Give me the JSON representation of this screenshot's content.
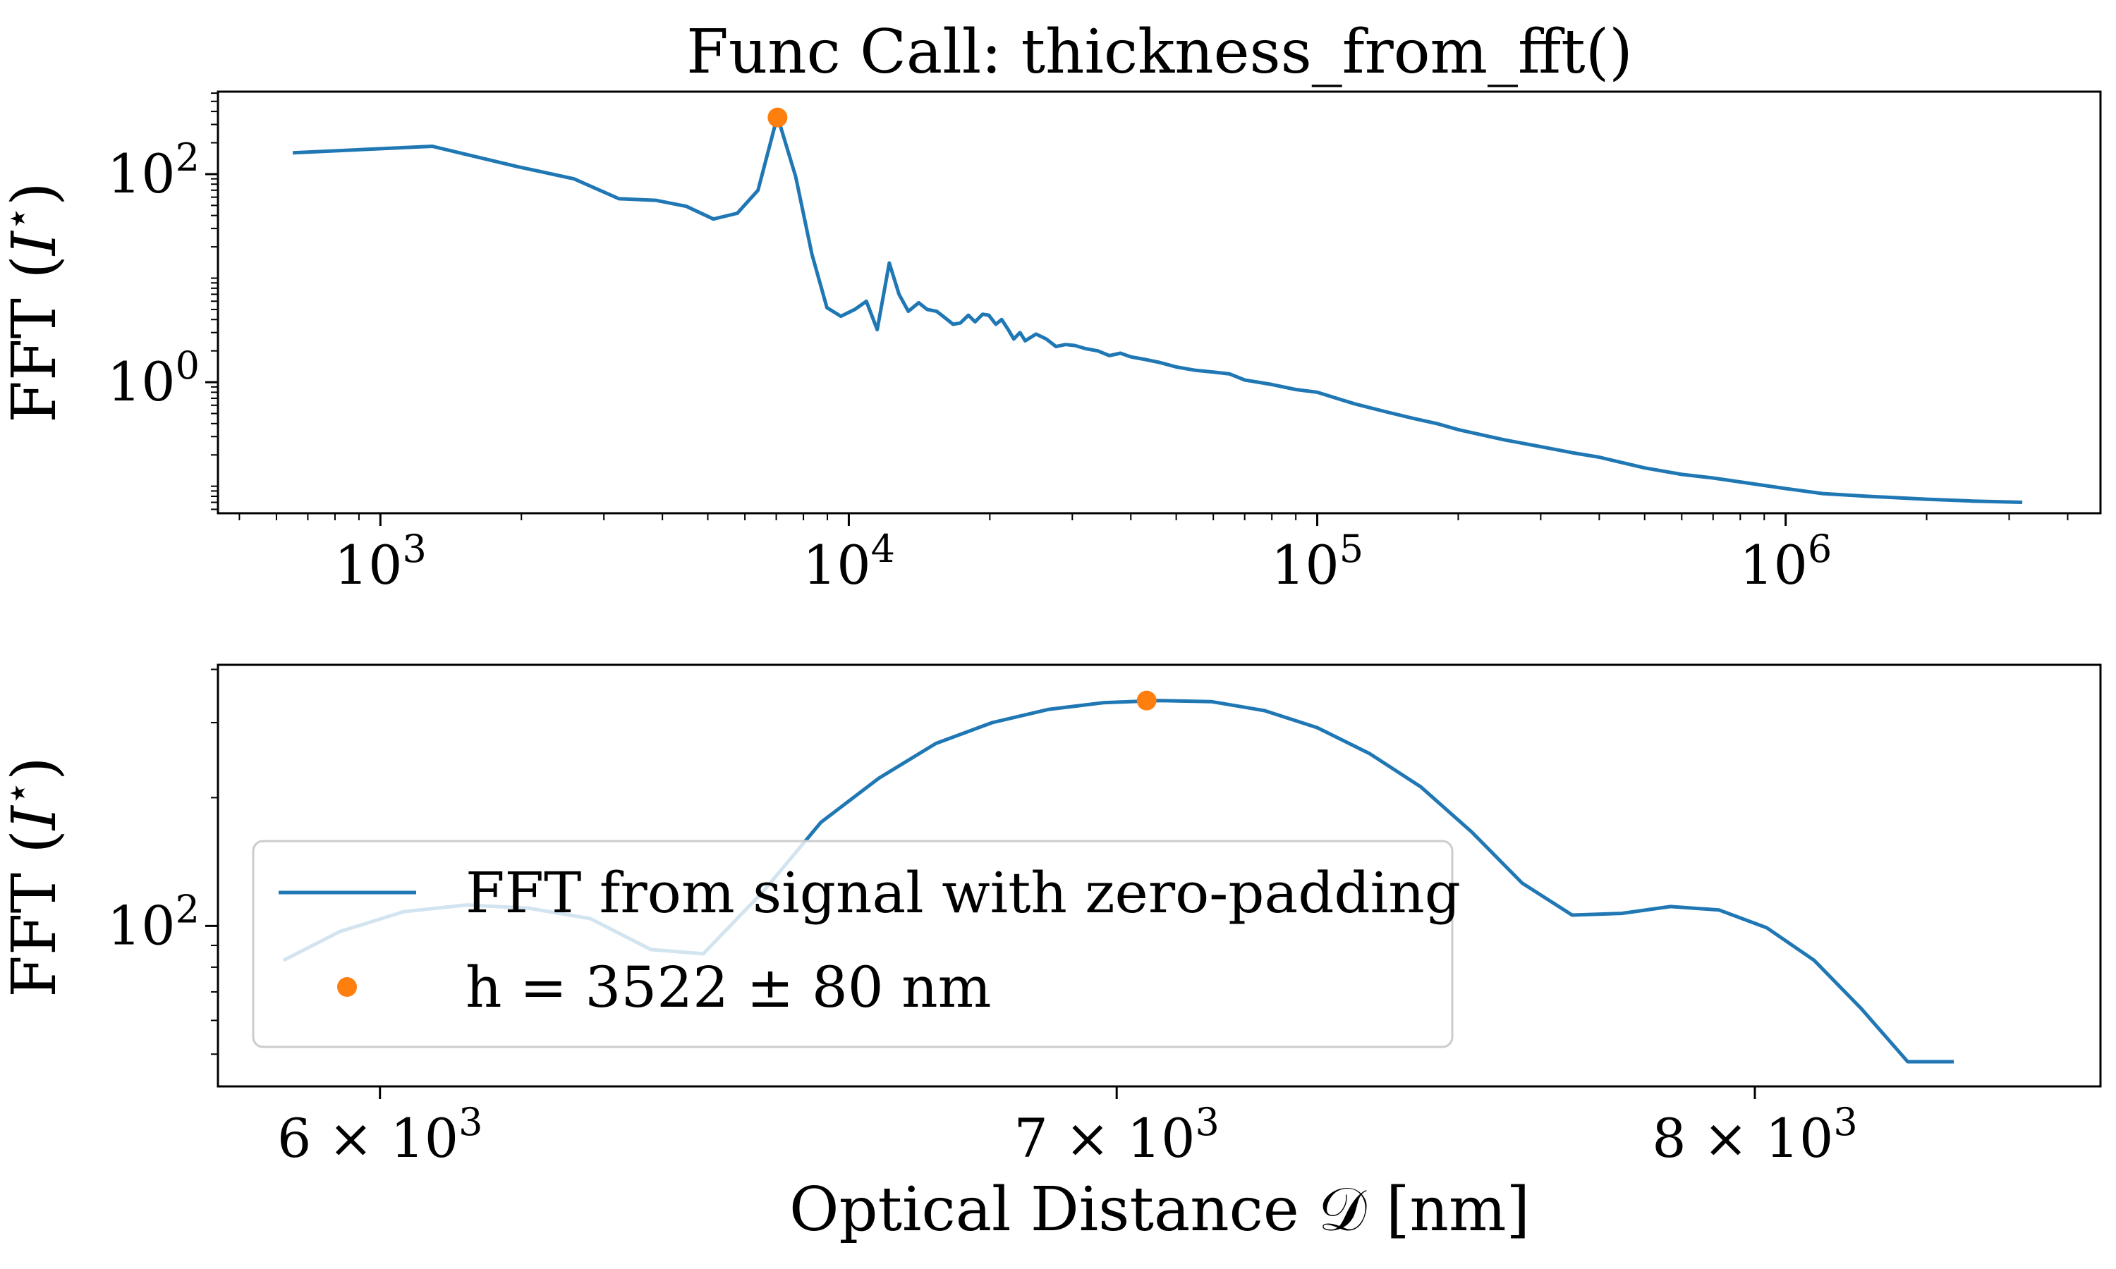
{
  "chart_data": [
    {
      "type": "line",
      "title": "Func Call: thickness_from_fft()",
      "ylabel": "FFT (I*)",
      "xscale": "log",
      "yscale": "log",
      "xlim": [
        450,
        4700000
      ],
      "ylim": [
        0.055,
        620
      ],
      "xtick_values": [
        1000,
        10000,
        100000,
        1000000
      ],
      "xtick_labels": [
        "10^3",
        "10^4",
        "10^5",
        "10^6"
      ],
      "ytick_values": [
        1,
        100
      ],
      "ytick_labels": [
        "10^0",
        "10^2"
      ],
      "colors": {
        "line": "#1f77b4",
        "marker": "#ff7f0e"
      },
      "series": [
        {
          "x": [
            650,
            1290,
            1960,
            2590,
            3230,
            3870,
            4500,
            5140,
            5780,
            6400,
            7040,
            7700,
            8340,
            8980,
            9620,
            10300,
            10900,
            11500,
            12200,
            12800,
            13400,
            14100,
            14700,
            15400,
            16000,
            16700,
            17300,
            18000,
            18600,
            19300,
            19900,
            20600,
            21200,
            21900,
            22500,
            23200,
            23800,
            25100,
            26400,
            27700,
            29000,
            30400,
            32000,
            34000,
            36000,
            38000,
            40000,
            43000,
            46000,
            50000,
            55000,
            60000,
            65000,
            70000,
            80000,
            90000,
            100000,
            120000,
            140000,
            160000,
            180000,
            200000,
            250000,
            300000,
            350000,
            400000,
            500000,
            600000,
            700000,
            800000,
            1000000,
            1200000,
            1500000,
            2000000,
            2500000,
            3200000
          ],
          "y": [
            160,
            185,
            118,
            90,
            58,
            56,
            49,
            37,
            42,
            70,
            360,
            95,
            17,
            5.2,
            4.3,
            5.0,
            6.0,
            3.2,
            14,
            7.0,
            4.8,
            5.8,
            5.0,
            4.8,
            4.2,
            3.6,
            3.7,
            4.4,
            3.8,
            4.5,
            4.4,
            3.6,
            4.0,
            3.2,
            2.6,
            3.0,
            2.5,
            2.9,
            2.6,
            2.2,
            2.3,
            2.25,
            2.1,
            2.0,
            1.8,
            1.9,
            1.75,
            1.65,
            1.55,
            1.4,
            1.3,
            1.25,
            1.2,
            1.05,
            0.95,
            0.85,
            0.8,
            0.62,
            0.52,
            0.45,
            0.4,
            0.35,
            0.28,
            0.24,
            0.21,
            0.19,
            0.15,
            0.13,
            0.12,
            0.11,
            0.095,
            0.085,
            0.08,
            0.075,
            0.072,
            0.07
          ]
        },
        {
          "x": [
            7044
          ],
          "y": [
            350
          ]
        }
      ]
    },
    {
      "type": "line",
      "xlabel": "Optical Distance 𝒟 [nm]",
      "ylabel": "FFT (I*)",
      "xscale": "log",
      "yscale": "log",
      "xlim": [
        5800,
        8600
      ],
      "ylim": [
        42,
        410
      ],
      "xtick_values": [
        6000,
        7000,
        8000
      ],
      "xtick_labels": [
        "6 × 10^3",
        "7 × 10^3",
        "8 × 10^3"
      ],
      "ytick_values": [
        100
      ],
      "ytick_labels": [
        "10^2"
      ],
      "legend_position": "lower-left",
      "colors": {
        "line": "#1f77b4",
        "marker": "#ff7f0e"
      },
      "series": [
        {
          "name": "FFT from signal with zero-padding",
          "x": [
            5880,
            5950,
            6030,
            6110,
            6190,
            6270,
            6350,
            6420,
            6500,
            6580,
            6660,
            6740,
            6820,
            6900,
            6980,
            7060,
            7140,
            7220,
            7300,
            7380,
            7460,
            7540,
            7620,
            7700,
            7780,
            7860,
            7940,
            8020,
            8100,
            8180,
            8260,
            8340
          ],
          "y": [
            83,
            97,
            108,
            112,
            110,
            104,
            88,
            86,
            120,
            175,
            222,
            268,
            300,
            322,
            334,
            338,
            336,
            320,
            292,
            254,
            212,
            166,
            126,
            106,
            107,
            111,
            109,
            99,
            83,
            64,
            48,
            48
          ]
        },
        {
          "name": "h = 3522 ± 80 nm",
          "x": [
            7044
          ],
          "y": [
            338
          ]
        }
      ]
    }
  ]
}
